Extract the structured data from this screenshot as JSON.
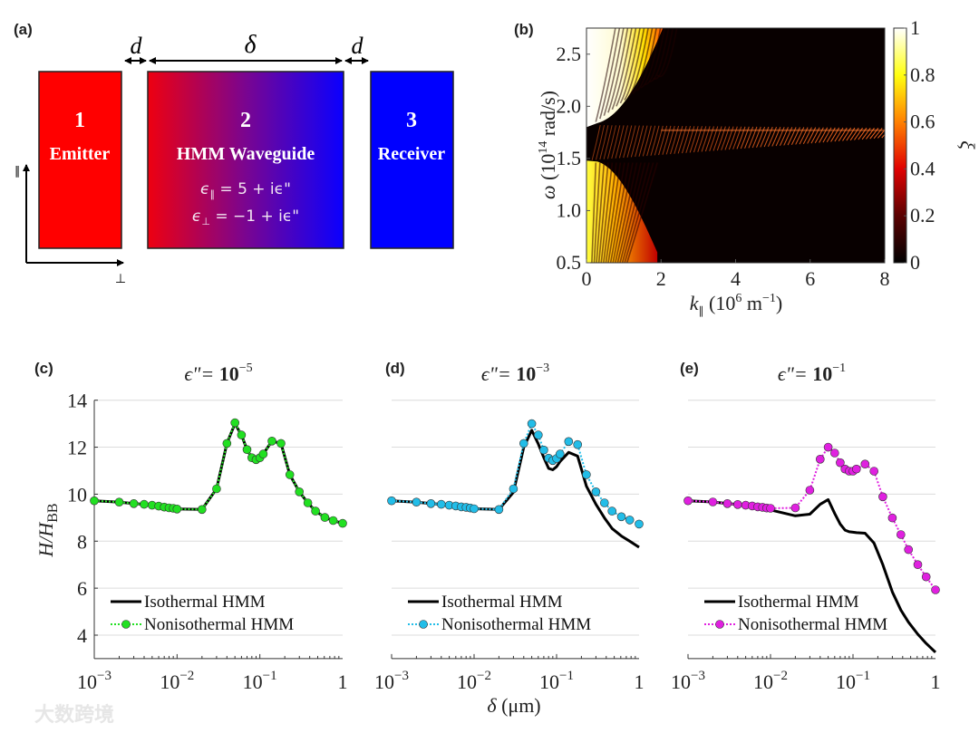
{
  "panel_labels": {
    "a": "(a)",
    "b": "(b)",
    "c": "(c)",
    "d": "(d)",
    "e": "(e)"
  },
  "diagram": {
    "gap_label": "d",
    "length_label": "δ",
    "blocks": [
      {
        "number": "1",
        "label": "Emitter",
        "color": "#ff0000"
      },
      {
        "number": "2",
        "label": "HMM Waveguide",
        "color_start": "#ee0010",
        "color_end": "#0a00ff"
      },
      {
        "number": "3",
        "label": "Receiver",
        "color": "#0000ff"
      }
    ],
    "eq_parallel": {
      "sym": "ϵ",
      "sub": "∥",
      "rhs": " = 5 + iϵ\""
    },
    "eq_perp": {
      "sym": "ϵ",
      "sub": "⊥",
      "rhs": " = −1 + iϵ\""
    },
    "axis_parallel": "∥",
    "axis_perp": "⊥"
  },
  "watermark": "大数跨境",
  "chart_data": [
    {
      "type": "heatmap",
      "panel": "b",
      "xlabel": {
        "sym": "k",
        "sub": "∥",
        "rest": " (10",
        "exp": "6",
        "unit": " m",
        "unit_exp": "−1",
        "close": ")"
      },
      "ylabel": {
        "sym": "ω",
        "rest": " (10",
        "exp": "14",
        "unit": " rad/s)"
      },
      "xlim": [
        0,
        8
      ],
      "ylim": [
        0.5,
        2.75
      ],
      "x_ticks": [
        "0",
        "2",
        "4",
        "6",
        "8"
      ],
      "y_ticks": [
        "0.5",
        "1.0",
        "1.5",
        "2.0",
        "2.5"
      ],
      "colorbar": {
        "label": "ξ",
        "range": [
          0,
          1
        ],
        "ticks": [
          "0",
          "0.2",
          "0.4",
          "0.6",
          "0.8",
          "1"
        ],
        "colormap": "hot"
      },
      "band_center_omega": 1.77
    },
    {
      "type": "line",
      "panel": "c",
      "title": {
        "prefix": "ϵ\"= ",
        "base": "10",
        "exp": "−5"
      },
      "ylabel": {
        "main": "H/H",
        "sub": "BB"
      },
      "xscale": "log",
      "xlim": [
        0.001,
        1
      ],
      "ylim": [
        3,
        14
      ],
      "y_ticks": [
        "4",
        "6",
        "8",
        "10",
        "12",
        "14"
      ],
      "x_ticks": [
        {
          "base": "10",
          "exp": "−3"
        },
        {
          "base": "10",
          "exp": "−2"
        },
        {
          "base": "10",
          "exp": "−1"
        },
        {
          "base": "1",
          "exp": ""
        }
      ],
      "grid": true,
      "legend": "bottom-left",
      "x": [
        0.001,
        0.002,
        0.003,
        0.004,
        0.005,
        0.006,
        0.007,
        0.008,
        0.009,
        0.01,
        0.02,
        0.03,
        0.04,
        0.05,
        0.06,
        0.07,
        0.08,
        0.09,
        0.1,
        0.11,
        0.14,
        0.18,
        0.23,
        0.3,
        0.38,
        0.47,
        0.61,
        0.77,
        1.0
      ],
      "series": [
        {
          "name": "Isothermal HMM",
          "color": "#000000",
          "style": "solid",
          "values": [
            9.72,
            9.66,
            9.6,
            9.57,
            9.53,
            9.49,
            9.45,
            9.42,
            9.4,
            9.37,
            9.35,
            10.23,
            12.16,
            13.0,
            12.52,
            11.9,
            11.55,
            11.47,
            11.55,
            11.71,
            12.26,
            12.16,
            10.83,
            10.1,
            9.63,
            9.28,
            9.01,
            8.88,
            8.76
          ]
        },
        {
          "name": "Nonisothermal HMM",
          "color": "#22e022",
          "style": "dotted-markers",
          "values": [
            9.72,
            9.66,
            9.6,
            9.57,
            9.53,
            9.49,
            9.45,
            9.42,
            9.4,
            9.37,
            9.35,
            10.23,
            12.16,
            13.04,
            12.52,
            11.9,
            11.55,
            11.47,
            11.55,
            11.71,
            12.26,
            12.16,
            10.83,
            10.1,
            9.63,
            9.28,
            9.01,
            8.88,
            8.76
          ]
        }
      ]
    },
    {
      "type": "line",
      "panel": "d",
      "title": {
        "prefix": "ϵ\"= ",
        "base": "10",
        "exp": "−3"
      },
      "xlabel": {
        "sym": "δ",
        "rest": " (μm)"
      },
      "xscale": "log",
      "xlim": [
        0.001,
        1
      ],
      "ylim": [
        3,
        14
      ],
      "x_ticks": [
        {
          "base": "10",
          "exp": "−3"
        },
        {
          "base": "10",
          "exp": "−2"
        },
        {
          "base": "10",
          "exp": "−1"
        },
        {
          "base": "1",
          "exp": ""
        }
      ],
      "grid": true,
      "legend": "bottom-left",
      "x": [
        0.001,
        0.002,
        0.003,
        0.004,
        0.005,
        0.006,
        0.007,
        0.008,
        0.009,
        0.01,
        0.02,
        0.03,
        0.04,
        0.05,
        0.06,
        0.07,
        0.08,
        0.09,
        0.1,
        0.11,
        0.14,
        0.18,
        0.23,
        0.3,
        0.38,
        0.47,
        0.61,
        0.77,
        1.0
      ],
      "series": [
        {
          "name": "Isothermal HMM",
          "color": "#000000",
          "style": "solid",
          "values": [
            9.72,
            9.66,
            9.6,
            9.57,
            9.53,
            9.5,
            9.46,
            9.44,
            9.41,
            9.38,
            9.35,
            10.08,
            12.0,
            12.72,
            12.14,
            11.56,
            11.1,
            11.04,
            11.17,
            11.39,
            11.78,
            11.62,
            10.34,
            9.57,
            8.99,
            8.54,
            8.22,
            8.0,
            7.74
          ]
        },
        {
          "name": "Nonisothermal HMM",
          "color": "#22bde8",
          "style": "dotted-markers",
          "values": [
            9.72,
            9.66,
            9.6,
            9.57,
            9.53,
            9.5,
            9.46,
            9.44,
            9.41,
            9.38,
            9.35,
            10.23,
            12.16,
            13.0,
            12.52,
            11.88,
            11.53,
            11.43,
            11.52,
            11.71,
            12.24,
            12.11,
            10.83,
            10.1,
            9.63,
            9.28,
            9.04,
            8.9,
            8.73
          ]
        }
      ]
    },
    {
      "type": "line",
      "panel": "e",
      "title": {
        "prefix": "ϵ\"= ",
        "base": "10",
        "exp": "−1"
      },
      "xscale": "log",
      "xlim": [
        0.001,
        1
      ],
      "ylim": [
        3,
        14
      ],
      "x_ticks": [
        {
          "base": "10",
          "exp": "−3"
        },
        {
          "base": "10",
          "exp": "−2"
        },
        {
          "base": "10",
          "exp": "−1"
        },
        {
          "base": "1",
          "exp": ""
        }
      ],
      "grid": true,
      "legend": "bottom-left",
      "x": [
        0.001,
        0.002,
        0.003,
        0.004,
        0.005,
        0.006,
        0.007,
        0.008,
        0.009,
        0.01,
        0.02,
        0.03,
        0.04,
        0.05,
        0.06,
        0.07,
        0.08,
        0.09,
        0.1,
        0.11,
        0.14,
        0.18,
        0.23,
        0.3,
        0.38,
        0.47,
        0.61,
        0.77,
        1.0
      ],
      "series": [
        {
          "name": "Isothermal HMM",
          "color": "#000000",
          "style": "solid",
          "values": [
            9.72,
            9.67,
            9.6,
            9.56,
            9.52,
            9.48,
            9.44,
            9.41,
            9.38,
            9.33,
            9.08,
            9.15,
            9.57,
            9.77,
            9.18,
            8.73,
            8.47,
            8.4,
            8.38,
            8.36,
            8.34,
            7.92,
            7.0,
            5.84,
            5.07,
            4.55,
            4.04,
            3.65,
            3.27
          ]
        },
        {
          "name": "Nonisothermal HMM",
          "color": "#e020e0",
          "style": "dotted-markers",
          "values": [
            9.72,
            9.67,
            9.6,
            9.56,
            9.53,
            9.5,
            9.46,
            9.44,
            9.41,
            9.4,
            9.42,
            10.17,
            11.49,
            12.0,
            11.75,
            11.34,
            11.07,
            10.98,
            10.98,
            11.07,
            11.28,
            10.98,
            9.89,
            8.99,
            8.28,
            7.64,
            7.0,
            6.48,
            5.93
          ]
        }
      ]
    }
  ]
}
